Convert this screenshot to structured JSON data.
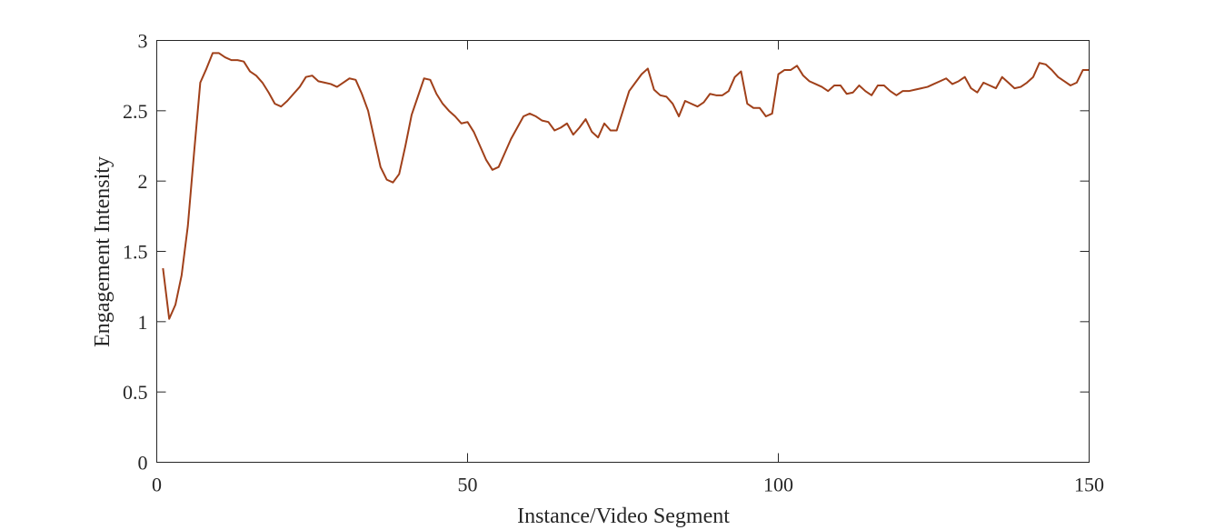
{
  "chart_data": {
    "type": "line",
    "title": "",
    "xlabel": "Instance/Video Segment",
    "ylabel": "Engagement Intensity",
    "xlim": [
      0,
      150
    ],
    "ylim": [
      0,
      3
    ],
    "x_ticks": [
      "0",
      "50",
      "100",
      "150"
    ],
    "y_ticks": [
      "0",
      "0.5",
      "1",
      "1.5",
      "2",
      "2.5",
      "3"
    ],
    "grid": false,
    "legend": "none",
    "line_color": "#A0401A",
    "series": [
      {
        "x": [
          1,
          2,
          3,
          4,
          5,
          6,
          7,
          8,
          9,
          10,
          11,
          12,
          13,
          14,
          15,
          16,
          17,
          18,
          19,
          20,
          21,
          22,
          23,
          24,
          25,
          26,
          27,
          28,
          29,
          30,
          31,
          32,
          33,
          34,
          35,
          36,
          37,
          38,
          39,
          40,
          41,
          42,
          43,
          44,
          45,
          46,
          47,
          48,
          49,
          50,
          51,
          52,
          53,
          54,
          55,
          56,
          57,
          58,
          59,
          60,
          61,
          62,
          63,
          64,
          65,
          66,
          67,
          68,
          69,
          70,
          71,
          72,
          73,
          74,
          75,
          76,
          77,
          78,
          79,
          80,
          81,
          82,
          83,
          84,
          85,
          86,
          87,
          88,
          89,
          90,
          91,
          92,
          93,
          94,
          95,
          96,
          97,
          98,
          99,
          100,
          101,
          102,
          103,
          104,
          105,
          106,
          107,
          108,
          109,
          110,
          111,
          112,
          113,
          114,
          115,
          116,
          117,
          118,
          119,
          120,
          121,
          122,
          123,
          124,
          125,
          126,
          127,
          128,
          129,
          130,
          131,
          132,
          133,
          134,
          135,
          136,
          137,
          138,
          139,
          140,
          141,
          142,
          143,
          144,
          145,
          146,
          147,
          148,
          149,
          150
        ],
        "y": [
          1.38,
          1.02,
          1.12,
          1.33,
          1.68,
          2.2,
          2.7,
          2.8,
          2.91,
          2.91,
          2.88,
          2.86,
          2.86,
          2.85,
          2.78,
          2.75,
          2.7,
          2.63,
          2.55,
          2.53,
          2.57,
          2.62,
          2.67,
          2.74,
          2.75,
          2.71,
          2.7,
          2.69,
          2.67,
          2.7,
          2.73,
          2.72,
          2.62,
          2.5,
          2.3,
          2.1,
          2.01,
          1.99,
          2.05,
          2.25,
          2.47,
          2.6,
          2.73,
          2.72,
          2.62,
          2.55,
          2.5,
          2.46,
          2.41,
          2.42,
          2.35,
          2.25,
          2.15,
          2.08,
          2.1,
          2.2,
          2.3,
          2.38,
          2.46,
          2.48,
          2.46,
          2.43,
          2.42,
          2.36,
          2.38,
          2.41,
          2.33,
          2.38,
          2.44,
          2.35,
          2.31,
          2.41,
          2.36,
          2.36,
          2.5,
          2.64,
          2.7,
          2.76,
          2.8,
          2.65,
          2.61,
          2.6,
          2.55,
          2.46,
          2.57,
          2.55,
          2.53,
          2.56,
          2.62,
          2.61,
          2.61,
          2.64,
          2.74,
          2.78,
          2.55,
          2.52,
          2.52,
          2.46,
          2.48,
          2.76,
          2.79,
          2.79,
          2.82,
          2.75,
          2.71,
          2.69,
          2.67,
          2.64,
          2.68,
          2.68,
          2.62,
          2.63,
          2.68,
          2.64,
          2.61,
          2.68,
          2.68,
          2.64,
          2.61,
          2.64,
          2.64,
          2.65,
          2.66,
          2.67,
          2.69,
          2.71,
          2.73,
          2.69,
          2.71,
          2.74,
          2.66,
          2.63,
          2.7,
          2.68,
          2.66,
          2.74,
          2.7,
          2.66,
          2.67,
          2.7,
          2.74,
          2.84,
          2.83,
          2.79,
          2.74,
          2.71,
          2.68,
          2.7,
          2.79,
          2.79
        ]
      }
    ]
  }
}
